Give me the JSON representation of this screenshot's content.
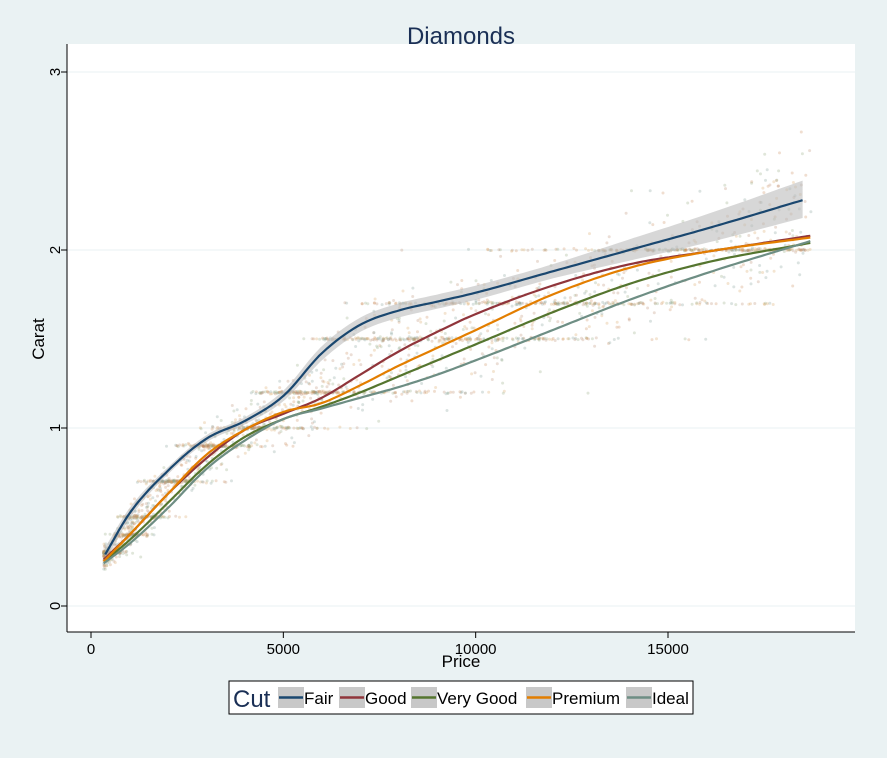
{
  "chart_data": {
    "type": "scatter",
    "title": "Diamonds",
    "xlabel": "Price",
    "ylabel": "Carat",
    "xlim": [
      -500,
      19500
    ],
    "ylim": [
      -0.15,
      3.15
    ],
    "x_ticks": [
      0,
      5000,
      10000,
      15000
    ],
    "y_ticks": [
      0,
      1,
      2,
      3
    ],
    "grid": true,
    "legend": {
      "title": "Cut",
      "placement": "bottom",
      "entries": [
        "Fair",
        "Good",
        "Very Good",
        "Premium",
        "Ideal"
      ]
    },
    "series": [
      {
        "name": "Fair",
        "color": "#1a476f",
        "x": [
          370,
          1000,
          2000,
          3000,
          4000,
          5000,
          6000,
          7000,
          8000,
          9000,
          10000,
          12000,
          14000,
          16000,
          18500
        ],
        "y": [
          0.29,
          0.52,
          0.76,
          0.94,
          1.04,
          1.18,
          1.42,
          1.58,
          1.66,
          1.71,
          1.76,
          1.88,
          2.0,
          2.12,
          2.28
        ],
        "ci_upper": [
          0.33,
          0.55,
          0.78,
          0.96,
          1.06,
          1.21,
          1.46,
          1.62,
          1.7,
          1.75,
          1.8,
          1.92,
          2.06,
          2.2,
          2.39
        ],
        "ci_lower": [
          0.25,
          0.49,
          0.74,
          0.92,
          1.02,
          1.15,
          1.38,
          1.54,
          1.62,
          1.67,
          1.72,
          1.84,
          1.94,
          2.04,
          2.18
        ]
      },
      {
        "name": "Good",
        "color": "#90353b",
        "x": [
          330,
          1000,
          2000,
          3000,
          4000,
          5000,
          6000,
          7000,
          8000,
          9000,
          10000,
          12000,
          14000,
          16000,
          18700
        ],
        "y": [
          0.26,
          0.4,
          0.63,
          0.83,
          0.99,
          1.08,
          1.17,
          1.3,
          1.43,
          1.54,
          1.64,
          1.8,
          1.92,
          1.99,
          2.08
        ]
      },
      {
        "name": "Very Good",
        "color": "#55752f",
        "x": [
          330,
          1000,
          2000,
          3000,
          4000,
          5000,
          6000,
          7000,
          8000,
          9000,
          10000,
          12000,
          14000,
          16000,
          18700
        ],
        "y": [
          0.25,
          0.37,
          0.58,
          0.79,
          0.95,
          1.05,
          1.12,
          1.2,
          1.29,
          1.38,
          1.47,
          1.65,
          1.81,
          1.93,
          2.04
        ]
      },
      {
        "name": "Premium",
        "color": "#e37e00",
        "x": [
          330,
          1000,
          2000,
          3000,
          4000,
          5000,
          6000,
          7000,
          8000,
          9000,
          10000,
          12000,
          14000,
          16000,
          18700
        ],
        "y": [
          0.25,
          0.4,
          0.63,
          0.85,
          0.99,
          1.09,
          1.14,
          1.24,
          1.35,
          1.45,
          1.55,
          1.75,
          1.9,
          1.99,
          2.07
        ]
      },
      {
        "name": "Ideal",
        "color": "#6e8e84",
        "x": [
          330,
          1000,
          2000,
          3000,
          4000,
          5000,
          6000,
          7000,
          8000,
          9000,
          10000,
          12000,
          14000,
          16000,
          18700
        ],
        "y": [
          0.24,
          0.35,
          0.55,
          0.77,
          0.93,
          1.05,
          1.11,
          1.17,
          1.23,
          1.3,
          1.38,
          1.55,
          1.72,
          1.87,
          2.05
        ]
      }
    ]
  }
}
